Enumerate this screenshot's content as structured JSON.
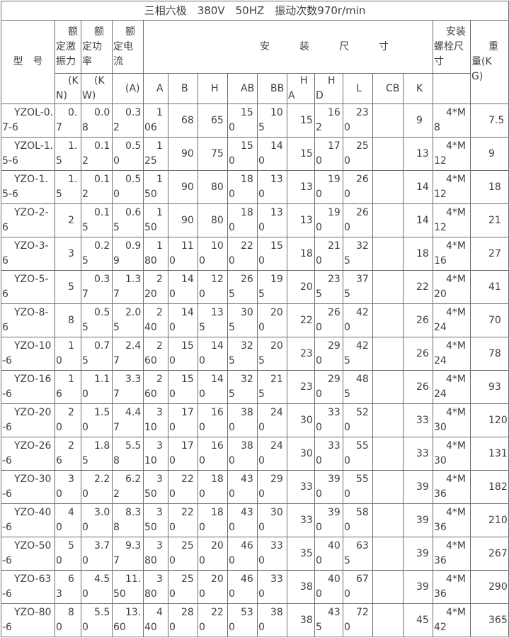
{
  "title": "三相六极　380V　50HZ　振动次数970r/min",
  "header": {
    "model_label": "型号",
    "force_label": "额定激振力",
    "force_unit": "(KN)",
    "power_label": "额定功率",
    "power_unit": "(KW)",
    "current_label": "额定电流",
    "current_unit": "(A)",
    "dims_label": "安装尺寸",
    "dim_cols": [
      "A",
      "B",
      "H",
      "AB",
      "BB",
      "HA",
      "HD",
      "L",
      "CB",
      "K"
    ],
    "bolt_label": "安装螺栓尺寸",
    "weight_label": "重量(KG)"
  },
  "rows": [
    {
      "model": "YZOL-0.7-6",
      "force": "0.7",
      "power": "0.08",
      "current": "0.32",
      "A": "106",
      "B": "68",
      "H": "65",
      "AB": "150",
      "BB": "105",
      "HA": "15",
      "HD": "162",
      "L": "230",
      "CB": "",
      "K": "9",
      "bolt": "4*M8",
      "weight": "7.5"
    },
    {
      "model": "YZOL-1.5-6",
      "force": "1.5",
      "power": "0.12",
      "current": "0.50",
      "A": "125",
      "B": "90",
      "H": "75",
      "AB": "150",
      "BB": "140",
      "HA": "15",
      "HD": "170",
      "L": "250",
      "CB": "",
      "K": "13",
      "bolt": "4*M12",
      "weight": "9"
    },
    {
      "model": "YZO-1.5-6",
      "force": "1.5",
      "power": "0.12",
      "current": "0.50",
      "A": "150",
      "B": "90",
      "H": "80",
      "AB": "180",
      "BB": "130",
      "HA": "13",
      "HD": "190",
      "L": "260",
      "CB": "",
      "K": "14",
      "bolt": "4*M12",
      "weight": "18"
    },
    {
      "model": "YZO-2-6",
      "force": "2",
      "power": "0.15",
      "current": "0.65",
      "A": "150",
      "B": "90",
      "H": "80",
      "AB": "180",
      "BB": "130",
      "HA": "13",
      "HD": "190",
      "L": "260",
      "CB": "",
      "K": "14",
      "bolt": "4*M12",
      "weight": "21"
    },
    {
      "model": "YZO-3-6",
      "force": "3",
      "power": "0.25",
      "current": "0.99",
      "A": "180",
      "B": "110",
      "H": "100",
      "AB": "220",
      "BB": "150",
      "HA": "18",
      "HD": "210",
      "L": "325",
      "CB": "",
      "K": "18",
      "bolt": "4*M16",
      "weight": "27"
    },
    {
      "model": "YZO-5-6",
      "force": "5",
      "power": "0.37",
      "current": "1.37",
      "A": "220",
      "B": "140",
      "H": "120",
      "AB": "265",
      "BB": "195",
      "HA": "20",
      "HD": "235",
      "L": "375",
      "CB": "",
      "K": "22",
      "bolt": "4*M20",
      "weight": "41"
    },
    {
      "model": "YZO-8-6",
      "force": "8",
      "power": "0.55",
      "current": "2.05",
      "A": "240",
      "B": "140",
      "H": "135",
      "AB": "305",
      "BB": "200",
      "HA": "22",
      "HD": "260",
      "L": "420",
      "CB": "",
      "K": "26",
      "bolt": "4*M24",
      "weight": "70"
    },
    {
      "model": "YZO-10-6",
      "force": "10",
      "power": "0.75",
      "current": "2.47",
      "A": "260",
      "B": "150",
      "H": "140",
      "AB": "325",
      "BB": "205",
      "HA": "23",
      "HD": "290",
      "L": "425",
      "CB": "",
      "K": "26",
      "bolt": "4*M24",
      "weight": "78"
    },
    {
      "model": "YZO-16-6",
      "force": "16",
      "power": "1.10",
      "current": "3.37",
      "A": "260",
      "B": "150",
      "H": "140",
      "AB": "325",
      "BB": "215",
      "HA": "23",
      "HD": "290",
      "L": "485",
      "CB": "",
      "K": "26",
      "bolt": "4*M24",
      "weight": "93"
    },
    {
      "model": "YZO-20-6",
      "force": "20",
      "power": "1.50",
      "current": "4.47",
      "A": "310",
      "B": "170",
      "H": "160",
      "AB": "380",
      "BB": "240",
      "HA": "30",
      "HD": "330",
      "L": "520",
      "CB": "",
      "K": "33",
      "bolt": "4*M30",
      "weight": "120"
    },
    {
      "model": "YZO-26-6",
      "force": "26",
      "power": "1.85",
      "current": "5.58",
      "A": "310",
      "B": "170",
      "H": "160",
      "AB": "380",
      "BB": "240",
      "HA": "30",
      "HD": "330",
      "L": "550",
      "CB": "",
      "K": "33",
      "bolt": "4*M30",
      "weight": "131"
    },
    {
      "model": "YZO-30-6",
      "force": "30",
      "power": "2.20",
      "current": "6.22",
      "A": "350",
      "B": "220",
      "H": "180",
      "AB": "430",
      "BB": "290",
      "HA": "33",
      "HD": "390",
      "L": "550",
      "CB": "",
      "K": "39",
      "bolt": "4*M36",
      "weight": "182"
    },
    {
      "model": "YZO-40-6",
      "force": "40",
      "power": "3.00",
      "current": "8.38",
      "A": "350",
      "B": "220",
      "H": "180",
      "AB": "430",
      "BB": "300",
      "HA": "33",
      "HD": "390",
      "L": "580",
      "CB": "",
      "K": "39",
      "bolt": "4*M36",
      "weight": "210"
    },
    {
      "model": "YZO-50-6",
      "force": "50",
      "power": "3.70",
      "current": "9.37",
      "A": "380",
      "B": "250",
      "H": "200",
      "AB": "460",
      "BB": "330",
      "HA": "35",
      "HD": "400",
      "L": "635",
      "CB": "",
      "K": "39",
      "bolt": "4*M36",
      "weight": "267"
    },
    {
      "model": "YZO-63-6",
      "force": "63",
      "power": "4.50",
      "current": "11.50",
      "A": "380",
      "B": "250",
      "H": "200",
      "AB": "460",
      "BB": "330",
      "HA": "38",
      "HD": "400",
      "L": "670",
      "CB": "",
      "K": "39",
      "bolt": "4*M36",
      "weight": "290"
    },
    {
      "model": "YZO-80-6",
      "force": "80",
      "power": "5.50",
      "current": "13.60",
      "A": "440",
      "B": "280",
      "H": "220",
      "AB": "530",
      "BB": "380",
      "HA": "38",
      "HD": "435",
      "L": "720",
      "CB": "",
      "K": "45",
      "bolt": "4*M42",
      "weight": "365"
    }
  ]
}
